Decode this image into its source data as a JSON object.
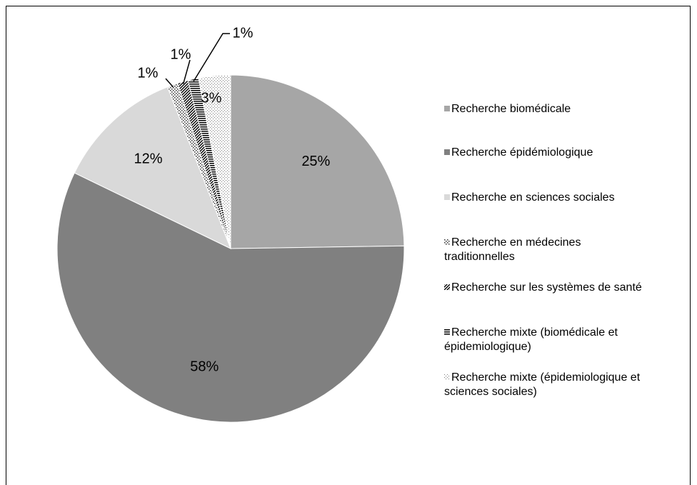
{
  "chart_data": {
    "type": "pie",
    "series": [
      {
        "name": "Recherche biomédicale",
        "color": "#a6a6a6"
      },
      {
        "name": "Recherche épidémiologique",
        "color": "#808080"
      },
      {
        "name": "Recherche en sciences sociales",
        "color": "#d9d9d9"
      },
      {
        "name": "Recherche en médecines traditionnelles",
        "color": "#8c8c8c"
      },
      {
        "name": "Recherche sur les systèmes de santé",
        "color": "#404040"
      },
      {
        "name": "Recherche mixte (biomédicale et épidemiologique)",
        "color": "#262626"
      },
      {
        "name": "Recherche mixte (épidemiologique et sciences sociales)",
        "color": "#bfbfbf"
      }
    ],
    "values": [
      25,
      58,
      12,
      1,
      1,
      1,
      3
    ],
    "value_labels": [
      "25%",
      "58%",
      "12%",
      "1%",
      "1%",
      "1%",
      "3%"
    ],
    "legend": "right"
  }
}
